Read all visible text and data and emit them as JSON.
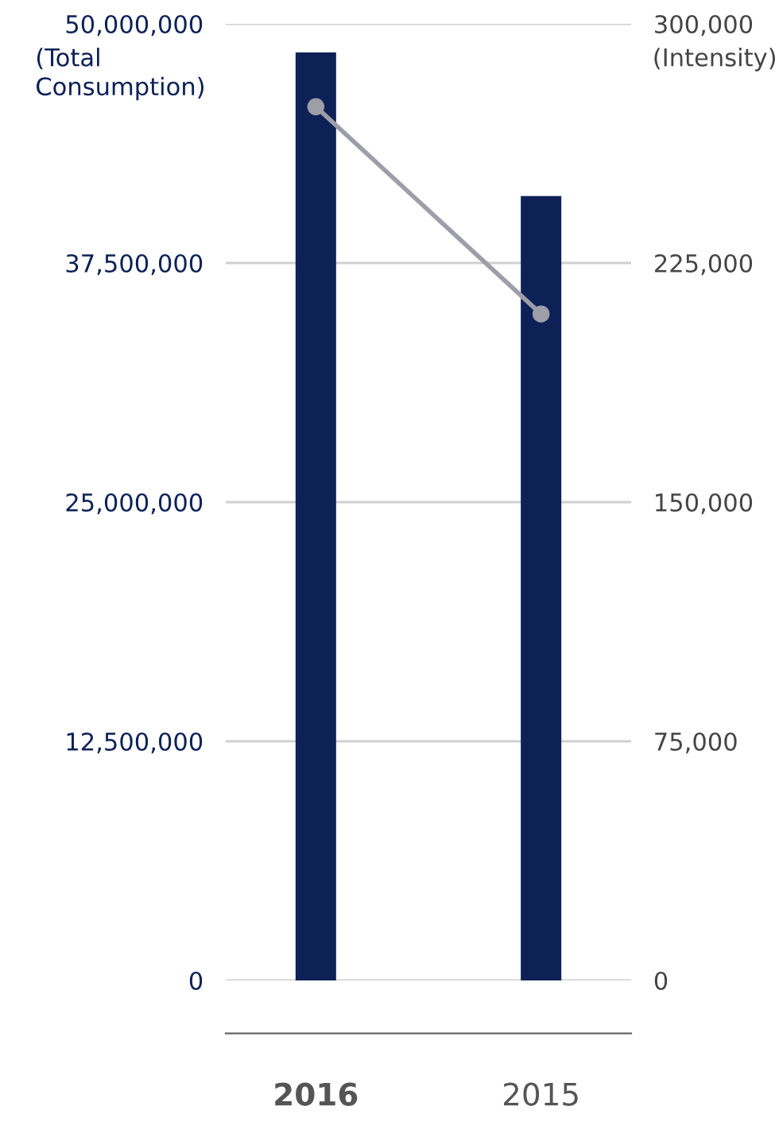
{
  "chart_data": {
    "type": "bar",
    "categories": [
      "2016",
      "2015"
    ],
    "ylabel": "(Total Consumption)",
    "y2label": "(Intensity)",
    "series": [
      {
        "type": "bar",
        "color": "#0d2157",
        "values": [
          48500000,
          41000000
        ]
      },
      {
        "type": "line",
        "axis": "y2",
        "color": "#9d9ea8",
        "marker": "circle",
        "values": [
          274000,
          209000
        ]
      }
    ],
    "ylim": [
      0,
      50000000
    ],
    "yticks": [
      {
        "value": 0,
        "label": "0"
      },
      {
        "value": 12500000,
        "label": "12,500,000"
      },
      {
        "value": 25000000,
        "label": "25,000,000"
      },
      {
        "value": 37500000,
        "label": "37,500,000"
      },
      {
        "value": 50000000,
        "label": "50,000,000"
      }
    ],
    "y2lim": [
      0,
      300000
    ],
    "y2ticks": [
      {
        "value": 0,
        "label": "0"
      },
      {
        "value": 75000,
        "label": "75,000"
      },
      {
        "value": 150000,
        "label": "150,000"
      },
      {
        "value": 225000,
        "label": "225,000"
      },
      {
        "value": 300000,
        "label": "300,000"
      }
    ],
    "grid": "y"
  }
}
